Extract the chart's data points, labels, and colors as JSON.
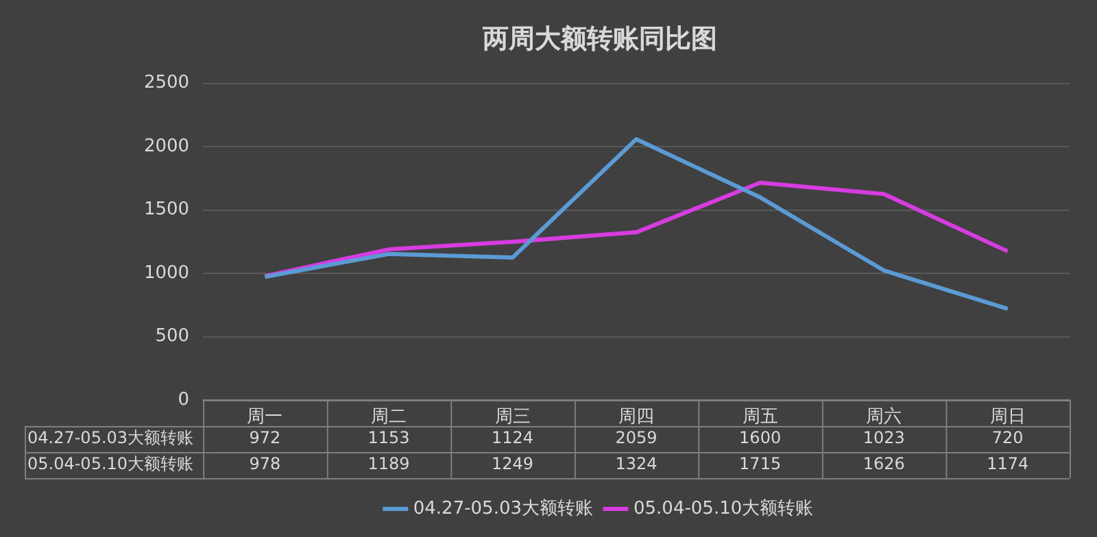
{
  "chart_data": {
    "type": "line",
    "title": "两周大额转账同比图",
    "categories": [
      "周一",
      "周二",
      "周三",
      "周四",
      "周五",
      "周六",
      "周日"
    ],
    "series": [
      {
        "name": "04.27-05.03大额转账",
        "color": "#5b9bd5",
        "values": [
          972,
          1153,
          1124,
          2059,
          1600,
          1023,
          720
        ]
      },
      {
        "name": "05.04-05.10大额转账",
        "color": "#d63ce0",
        "values": [
          978,
          1189,
          1249,
          1324,
          1715,
          1626,
          1174
        ]
      }
    ],
    "ylim": [
      0,
      2500
    ],
    "yticks": [
      0,
      500,
      1000,
      1500,
      2000,
      2500
    ],
    "grid": "y",
    "legend": "bottom",
    "data_labels": true,
    "marker": "none",
    "line_style": "solid"
  }
}
